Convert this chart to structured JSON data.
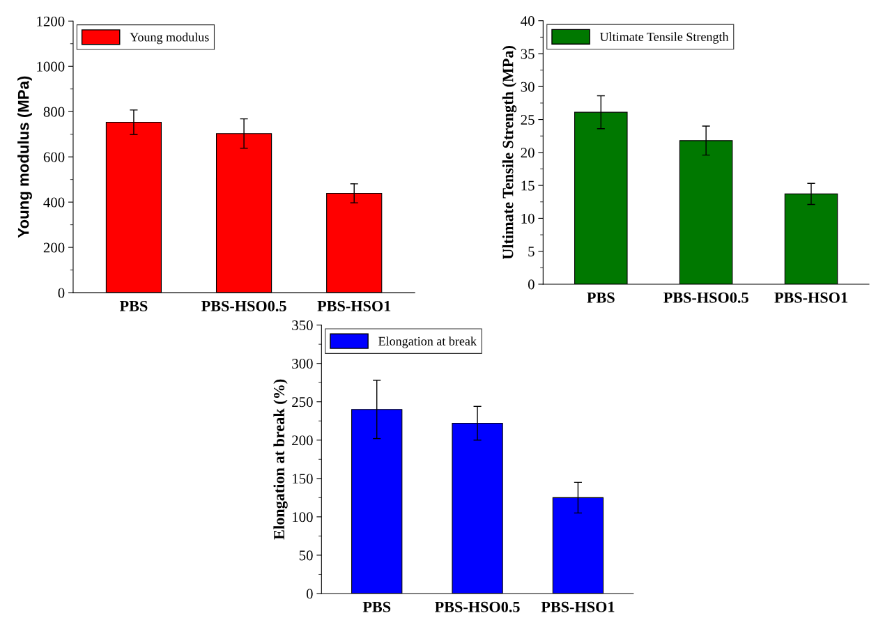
{
  "chart_data": [
    {
      "type": "bar",
      "ylabel": "Young modulus (MPa)",
      "categories": [
        "PBS",
        "PBS-HSO0.5",
        "PBS-HSO1"
      ],
      "series": [
        {
          "name": "Young modulus",
          "color": "#ff0000",
          "values": [
            753,
            703,
            439
          ],
          "errors": [
            54,
            65,
            42
          ]
        }
      ],
      "ylim": [
        0,
        1200
      ],
      "yticks": [
        0,
        200,
        400,
        600,
        800,
        1000,
        1200
      ],
      "legend": "top left",
      "grid": false
    },
    {
      "type": "bar",
      "ylabel": "Ultimate Tensile Strength (MPa)",
      "categories": [
        "PBS",
        "PBS-HSO0.5",
        "PBS-HSO1"
      ],
      "series": [
        {
          "name": "Ultimate Tensile Strength",
          "color": "#007800",
          "values": [
            26.1,
            21.8,
            13.7
          ],
          "errors": [
            2.5,
            2.2,
            1.6
          ]
        }
      ],
      "ylim": [
        0,
        40
      ],
      "yticks": [
        0,
        5,
        10,
        15,
        20,
        25,
        30,
        35,
        40
      ],
      "legend": "top left",
      "grid": false
    },
    {
      "type": "bar",
      "ylabel": "Elongation at break (%)",
      "categories": [
        "PBS",
        "PBS-HSO0.5",
        "PBS-HSO1"
      ],
      "series": [
        {
          "name": "Elongation at break",
          "color": "#0000ff",
          "values": [
            240,
            222,
            125
          ],
          "errors": [
            38,
            22,
            20
          ]
        }
      ],
      "ylim": [
        0,
        350
      ],
      "yticks": [
        0,
        50,
        100,
        150,
        200,
        250,
        300,
        350
      ],
      "legend": "top left",
      "grid": false
    }
  ]
}
